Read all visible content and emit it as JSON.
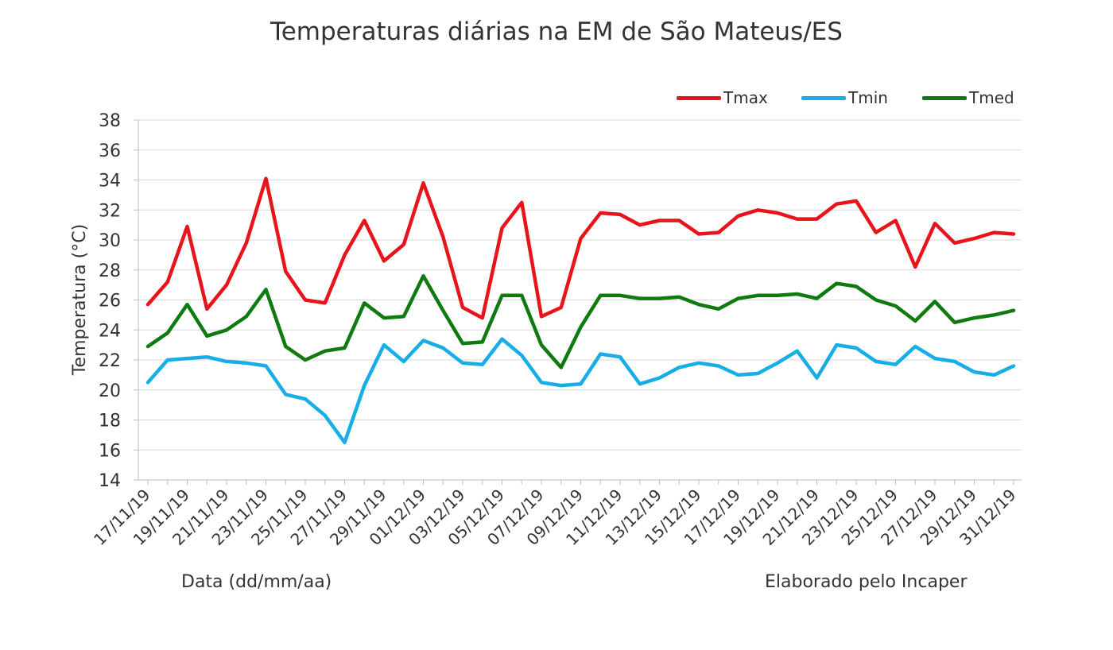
{
  "chart_data": {
    "type": "line",
    "title": "Temperaturas diárias na EM de São Mateus/ES",
    "xlabel": "Data (dd/mm/aa)",
    "ylabel": "Temperatura (°C)",
    "credit": "Elaborado pelo Incaper",
    "ylim": [
      14,
      38
    ],
    "yticks": [
      14,
      16,
      18,
      20,
      22,
      24,
      26,
      28,
      30,
      32,
      34,
      36,
      38
    ],
    "grid": true,
    "legend_position": "top-right",
    "x": [
      "17/11/19",
      "18/11/19",
      "19/11/19",
      "20/11/19",
      "21/11/19",
      "22/11/19",
      "23/11/19",
      "24/11/19",
      "25/11/19",
      "26/11/19",
      "27/11/19",
      "28/11/19",
      "29/11/19",
      "30/11/19",
      "01/12/19",
      "02/12/19",
      "03/12/19",
      "04/12/19",
      "05/12/19",
      "06/12/19",
      "07/12/19",
      "08/12/19",
      "09/12/19",
      "10/12/19",
      "11/12/19",
      "12/12/19",
      "13/12/19",
      "14/12/19",
      "15/12/19",
      "16/12/19",
      "17/12/19",
      "18/12/19",
      "19/12/19",
      "20/12/19",
      "21/12/19",
      "22/12/19",
      "23/12/19",
      "24/12/19",
      "25/12/19",
      "26/12/19",
      "27/12/19",
      "28/12/19",
      "29/12/19",
      "30/12/19",
      "31/12/19"
    ],
    "x_tick_labels": [
      "17/11/19",
      "19/11/19",
      "21/11/19",
      "23/11/19",
      "25/11/19",
      "27/11/19",
      "29/11/19",
      "01/12/19",
      "03/12/19",
      "05/12/19",
      "07/12/19",
      "09/12/19",
      "11/12/19",
      "13/12/19",
      "15/12/19",
      "17/12/19",
      "19/12/19",
      "21/12/19",
      "23/12/19",
      "25/12/19",
      "27/12/19",
      "29/12/19",
      "31/12/19"
    ],
    "series": [
      {
        "name": "Tmax",
        "color": "#e8141b",
        "values": [
          25.7,
          27.2,
          30.9,
          25.4,
          27.0,
          29.8,
          34.1,
          27.9,
          26.0,
          25.8,
          29.0,
          31.3,
          28.6,
          29.7,
          33.8,
          30.2,
          25.5,
          24.8,
          30.8,
          32.5,
          24.9,
          25.5,
          30.1,
          31.8,
          31.7,
          31.0,
          31.3,
          31.3,
          30.4,
          30.5,
          31.6,
          32.0,
          31.8,
          31.4,
          31.4,
          32.4,
          32.6,
          30.5,
          31.3,
          28.2,
          31.1,
          29.8,
          30.1,
          30.5,
          30.4
        ]
      },
      {
        "name": "Tmin",
        "color": "#17aee8",
        "values": [
          20.5,
          22.0,
          22.1,
          22.2,
          21.9,
          21.8,
          21.6,
          19.7,
          19.4,
          18.3,
          16.5,
          20.3,
          23.0,
          21.9,
          23.3,
          22.8,
          21.8,
          21.7,
          23.4,
          22.3,
          20.5,
          20.3,
          20.4,
          22.4,
          22.2,
          20.4,
          20.8,
          21.5,
          21.8,
          21.6,
          21.0,
          21.1,
          21.8,
          22.6,
          20.8,
          23.0,
          22.8,
          21.9,
          21.7,
          22.9,
          22.1,
          21.9,
          21.2,
          21.0,
          21.6
        ]
      },
      {
        "name": "Tmed",
        "color": "#0f7a10",
        "values": [
          22.9,
          23.8,
          25.7,
          23.6,
          24.0,
          24.9,
          26.7,
          22.9,
          22.0,
          22.6,
          22.8,
          25.8,
          24.8,
          24.9,
          27.6,
          25.3,
          23.1,
          23.2,
          26.3,
          26.3,
          23.0,
          21.5,
          24.2,
          26.3,
          26.3,
          26.1,
          26.1,
          26.2,
          25.7,
          25.4,
          26.1,
          26.3,
          26.3,
          26.4,
          26.1,
          27.1,
          26.9,
          26.0,
          25.6,
          24.6,
          25.9,
          24.5,
          24.8,
          25.0,
          25.3
        ]
      }
    ]
  }
}
